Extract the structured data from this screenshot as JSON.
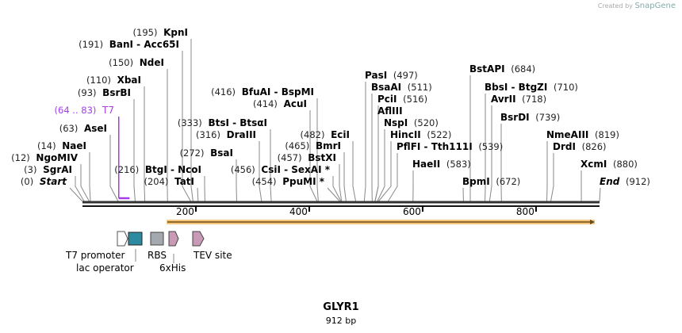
{
  "branding": {
    "created_by": "Created by",
    "product": "SnapGene"
  },
  "sequence": {
    "name": "GLYR1",
    "length_label": "912 bp",
    "length": 912
  },
  "colors": {
    "t7": "#a33ee6",
    "orf": "#f6c77a",
    "lac_operator": "#2e8aa0",
    "rbs": "#a4a9b0",
    "tag": "#c99ab6"
  },
  "ruler": {
    "ticks": [
      {
        "bp": 200,
        "label": "200"
      },
      {
        "bp": 400,
        "label": "400"
      },
      {
        "bp": 600,
        "label": "600"
      },
      {
        "bp": 800,
        "label": "800"
      }
    ]
  },
  "sites": [
    {
      "name": "Start",
      "pos": 0,
      "num": "(0)"
    },
    {
      "name": "SgrAI",
      "pos": 3,
      "num": "(3)"
    },
    {
      "name": "NgoMIV",
      "pos": 12,
      "num": "(12)"
    },
    {
      "name": "NaeI",
      "pos": 14,
      "num": "(14)"
    },
    {
      "name": "AseI",
      "pos": 63,
      "num": "(63)"
    },
    {
      "name": "T7",
      "pos": 64,
      "num": "(64 .. 83)"
    },
    {
      "name": "BsrBI",
      "pos": 93,
      "num": "(93)"
    },
    {
      "name": "XbaI",
      "pos": 110,
      "num": "(110)"
    },
    {
      "name": "NdeI",
      "pos": 150,
      "num": "(150)"
    },
    {
      "name": "BanI  - Acc65I",
      "pos": 191,
      "num": "(191)"
    },
    {
      "name": "KpnI",
      "pos": 195,
      "num": "(195)"
    },
    {
      "name": "BtgI  - NcoI",
      "pos": 216,
      "num": "(216)"
    },
    {
      "name": "TatI",
      "pos": 204,
      "num": "(204)"
    },
    {
      "name": "BsaI",
      "pos": 272,
      "num": "(272)"
    },
    {
      "name": "DraIII",
      "pos": 316,
      "num": "(316)"
    },
    {
      "name": "BtsI  - BtsαI",
      "pos": 333,
      "num": "(333)"
    },
    {
      "name": "CsiI  - SexAI *",
      "pos": 456,
      "num": "(456)"
    },
    {
      "name": "PpuMI *",
      "pos": 454,
      "num": "(454)"
    },
    {
      "name": "AcuI",
      "pos": 414,
      "num": "(414)"
    },
    {
      "name": "BfuAI  - BspMI",
      "pos": 416,
      "num": "(416)"
    },
    {
      "name": "BstXI",
      "pos": 457,
      "num": "(457)"
    },
    {
      "name": "BmrI",
      "pos": 465,
      "num": "(465)"
    },
    {
      "name": "EciI",
      "pos": 482,
      "num": "(482)"
    },
    {
      "name": "PasI",
      "pos": 497,
      "num": "(497)"
    },
    {
      "name": "BsaAI",
      "pos": 511,
      "num": "(511)"
    },
    {
      "name": "PciI",
      "pos": 516,
      "num": "(516)"
    },
    {
      "name": "AflIII",
      "pos": 516,
      "num": ""
    },
    {
      "name": "NspI",
      "pos": 520,
      "num": "(520)"
    },
    {
      "name": "HincII",
      "pos": 522,
      "num": "(522)"
    },
    {
      "name": "PflFI  - Tth111I",
      "pos": 539,
      "num": "(539)"
    },
    {
      "name": "HaeII",
      "pos": 583,
      "num": "(583)"
    },
    {
      "name": "BpmI",
      "pos": 672,
      "num": "(672)"
    },
    {
      "name": "BstAPI",
      "pos": 684,
      "num": "(684)"
    },
    {
      "name": "BbsI  - BtgZI",
      "pos": 710,
      "num": "(710)"
    },
    {
      "name": "AvrII",
      "pos": 718,
      "num": "(718)"
    },
    {
      "name": "BsrDI",
      "pos": 739,
      "num": "(739)"
    },
    {
      "name": "NmeAIII",
      "pos": 819,
      "num": "(819)"
    },
    {
      "name": "DrdI",
      "pos": 826,
      "num": "(826)"
    },
    {
      "name": "XcmI",
      "pos": 880,
      "num": "(880)"
    },
    {
      "name": "End",
      "pos": 912,
      "num": "(912)"
    }
  ],
  "features": [
    {
      "label": "T7 promoter"
    },
    {
      "label": "lac operator"
    },
    {
      "label": "RBS"
    },
    {
      "label": "6xHis"
    },
    {
      "label": "TEV site"
    }
  ]
}
